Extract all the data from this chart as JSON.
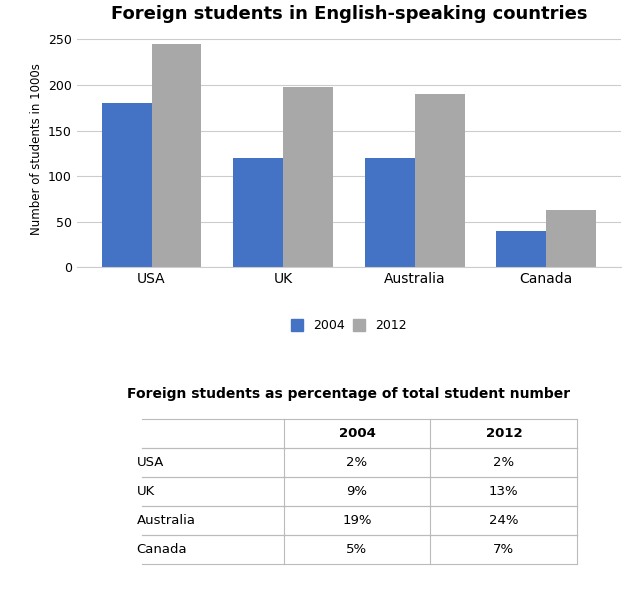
{
  "title": "Foreign students in English-speaking countries",
  "categories": [
    "USA",
    "UK",
    "Australia",
    "Canada"
  ],
  "values_2004": [
    180,
    120,
    120,
    40
  ],
  "values_2012": [
    245,
    198,
    190,
    63
  ],
  "bar_color_2004": "#4472C4",
  "bar_color_2012": "#A8A8A8",
  "ylabel": "Number of students in 1000s",
  "ylim": [
    0,
    260
  ],
  "yticks": [
    0,
    50,
    100,
    150,
    200,
    250
  ],
  "legend_labels": [
    "2004",
    "2012"
  ],
  "table_title": "Foreign students as percentage of total student number",
  "table_rows": [
    [
      "USA",
      "2%",
      "2%"
    ],
    [
      "UK",
      "9%",
      "13%"
    ],
    [
      "Australia",
      "19%",
      "24%"
    ],
    [
      "Canada",
      "5%",
      "7%"
    ]
  ],
  "bg_color": "#FFFFFF",
  "grid_color": "#CCCCCC"
}
